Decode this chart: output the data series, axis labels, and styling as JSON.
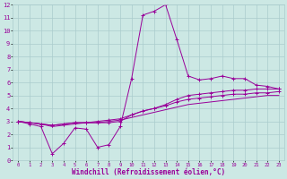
{
  "xlabel": "Windchill (Refroidissement éolien,°C)",
  "background_color": "#cce8e4",
  "grid_color": "#aacccc",
  "line_color": "#990099",
  "xlim": [
    -0.5,
    23.5
  ],
  "ylim": [
    0,
    12
  ],
  "xticks": [
    0,
    1,
    2,
    3,
    4,
    5,
    6,
    7,
    8,
    9,
    10,
    11,
    12,
    13,
    14,
    15,
    16,
    17,
    18,
    19,
    20,
    21,
    22,
    23
  ],
  "yticks": [
    0,
    1,
    2,
    3,
    4,
    5,
    6,
    7,
    8,
    9,
    10,
    11,
    12
  ],
  "line1_x": [
    0,
    1,
    2,
    3,
    4,
    5,
    6,
    7,
    8,
    9,
    10,
    11,
    12,
    13,
    14,
    15,
    16,
    17,
    18,
    19,
    20,
    21,
    22,
    23
  ],
  "line1_y": [
    3.0,
    2.8,
    2.6,
    0.5,
    1.3,
    2.5,
    2.4,
    1.0,
    1.2,
    2.6,
    6.3,
    11.2,
    11.5,
    12.0,
    9.3,
    6.5,
    6.2,
    6.3,
    6.5,
    6.3,
    6.3,
    5.8,
    5.7,
    5.5
  ],
  "line2_x": [
    0,
    1,
    2,
    3,
    4,
    5,
    6,
    7,
    8,
    9,
    10,
    11,
    12,
    13,
    14,
    15,
    16,
    17,
    18,
    19,
    20,
    21,
    22,
    23
  ],
  "line2_y": [
    3.0,
    2.9,
    2.8,
    2.7,
    2.8,
    2.9,
    2.9,
    2.9,
    2.9,
    3.0,
    3.5,
    3.8,
    4.0,
    4.3,
    4.7,
    5.0,
    5.1,
    5.2,
    5.3,
    5.4,
    5.4,
    5.5,
    5.5,
    5.5
  ],
  "line3_x": [
    0,
    1,
    2,
    3,
    4,
    5,
    6,
    7,
    8,
    9,
    10,
    11,
    12,
    13,
    14,
    15,
    16,
    17,
    18,
    19,
    20,
    21,
    22,
    23
  ],
  "line3_y": [
    3.0,
    2.9,
    2.8,
    2.7,
    2.8,
    2.9,
    2.9,
    3.0,
    3.1,
    3.2,
    3.5,
    3.8,
    4.0,
    4.2,
    4.5,
    4.7,
    4.8,
    4.9,
    5.0,
    5.1,
    5.1,
    5.2,
    5.2,
    5.3
  ],
  "line4_x": [
    0,
    1,
    2,
    3,
    4,
    5,
    6,
    7,
    8,
    9,
    10,
    11,
    12,
    13,
    14,
    15,
    16,
    17,
    18,
    19,
    20,
    21,
    22,
    23
  ],
  "line4_y": [
    3.0,
    2.9,
    2.8,
    2.6,
    2.7,
    2.8,
    2.9,
    2.9,
    3.0,
    3.1,
    3.3,
    3.5,
    3.7,
    3.9,
    4.1,
    4.3,
    4.4,
    4.5,
    4.6,
    4.7,
    4.8,
    4.9,
    5.0,
    5.0
  ]
}
